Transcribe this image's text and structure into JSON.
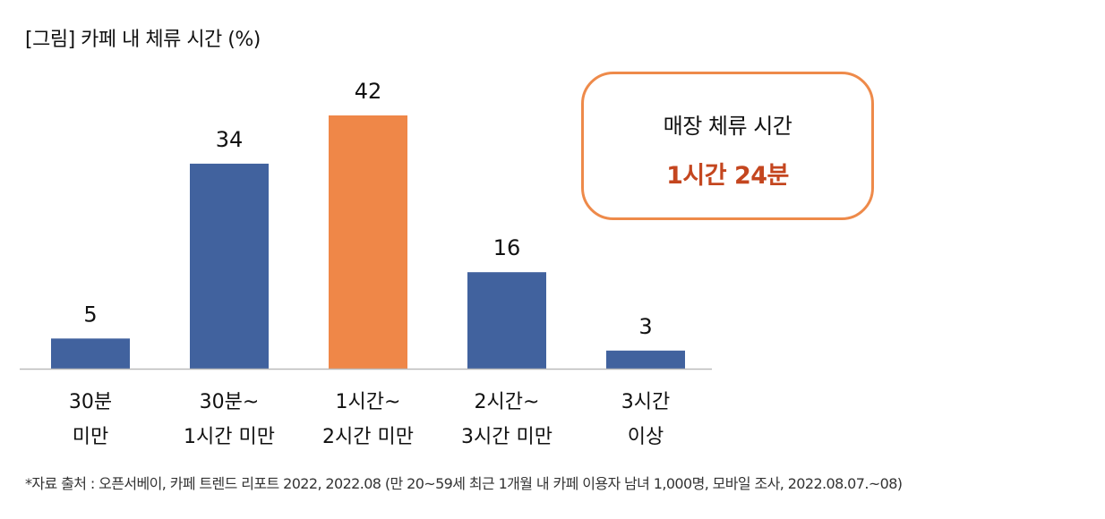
{
  "title": "[그림] 카페 내 체류 시간 (%)",
  "chart_data": {
    "type": "bar",
    "title": "[그림] 카페 내 체류 시간 (%)",
    "categories": [
      [
        "30분",
        "미만"
      ],
      [
        "30분~",
        "1시간 미만"
      ],
      [
        "1시간~",
        "2시간 미만"
      ],
      [
        "2시간~",
        "3시간 미만"
      ],
      [
        "3시간",
        "이상"
      ]
    ],
    "values": [
      5,
      34,
      42,
      16,
      3
    ],
    "colors": [
      "#41629E",
      "#41629E",
      "#EF8748",
      "#41629E",
      "#41629E"
    ],
    "ylim": [
      0,
      42
    ],
    "xlabel": "",
    "ylabel": "",
    "grid": false
  },
  "callout": {
    "label": "매장 체류 시간",
    "value": "1시간 24분"
  },
  "footnote": "*자료 출처 : 오픈서베이, 카페 트렌드 리포트 2022, 2022.08 (만 20~59세 최근 1개월 내 카페 이용자 남녀 1,000명, 모바일 조사, 2022.08.07.~08)"
}
